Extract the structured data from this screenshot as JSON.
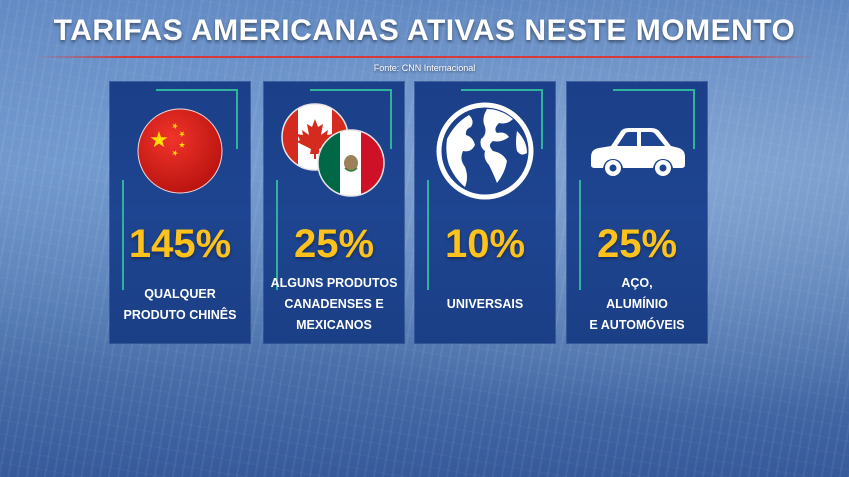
{
  "header": {
    "title": "TARIFAS AMERICANAS ATIVAS NESTE MOMENTO",
    "source": "Fonte: CNN Internacional"
  },
  "colors": {
    "card_bg": "#1e4591",
    "accent_teal": "#2fb39a",
    "percent_yellow": "#ffc21a",
    "title_rule_red": "#d63a3a"
  },
  "cards": [
    {
      "icon": "china-flag-icon",
      "percent": "145%",
      "lines": [
        "QUALQUER",
        "PRODUTO CHINÊS"
      ]
    },
    {
      "icon": "canada-mexico-flags-icon",
      "percent": "25%",
      "lines": [
        "ALGUNS PRODUTOS",
        "CANADENSES E",
        "MEXICANOS"
      ]
    },
    {
      "icon": "globe-icon",
      "percent": "10%",
      "lines": [
        "UNIVERSAIS"
      ]
    },
    {
      "icon": "car-icon",
      "percent": "25%",
      "lines": [
        "AÇO,",
        "ALUMÍNIO",
        "E AUTOMÓVEIS"
      ]
    }
  ]
}
